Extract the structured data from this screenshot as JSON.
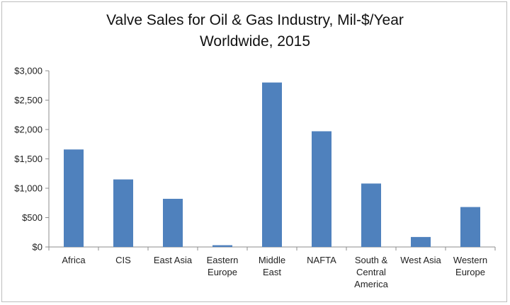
{
  "chart_data": {
    "type": "bar",
    "title_lines": [
      "Valve Sales for Oil & Gas Industry, Mil-$/Year",
      "Worldwide, 2015"
    ],
    "categories": [
      [
        "Africa"
      ],
      [
        "CIS"
      ],
      [
        "East Asia"
      ],
      [
        "Eastern",
        "Europe"
      ],
      [
        "Middle",
        "East"
      ],
      [
        "NAFTA"
      ],
      [
        "South &",
        "Central",
        "America"
      ],
      [
        "West Asia"
      ],
      [
        "Western",
        "Europe"
      ]
    ],
    "values": [
      1660,
      1150,
      820,
      30,
      2800,
      1970,
      1080,
      170,
      680
    ],
    "ylim": [
      0,
      3000
    ],
    "ytick_values": [
      0,
      500,
      1000,
      1500,
      2000,
      2500,
      3000
    ],
    "ytick_labels": [
      "$0",
      "$500",
      "$1,000",
      "$1,500",
      "$2,000",
      "$2,500",
      "$3,000"
    ],
    "xlabel": "",
    "ylabel": "",
    "grid": false,
    "legend": "none",
    "bar_color": "#4f81bd",
    "axis_color": "#8c8c8c"
  }
}
